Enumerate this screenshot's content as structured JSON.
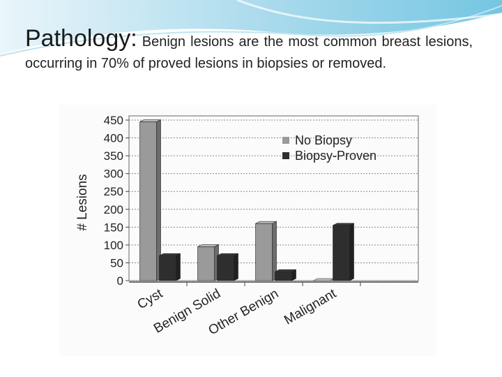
{
  "slide": {
    "title": "Pathology:",
    "body": "Benign lesions are the most common breast lesions, occurring in 70% of proved lesions in biopsies or removed."
  },
  "chart_data": {
    "type": "bar3d",
    "ylabel": "# Lesions",
    "categories": [
      "Cyst",
      "Benign Solid",
      "Other Benign",
      "Malignant"
    ],
    "series": [
      {
        "name": "No Biopsy",
        "color": "#9a9a9a",
        "values": [
          445,
          95,
          160,
          0
        ]
      },
      {
        "name": "Biopsy-Proven",
        "color": "#2e2e2e",
        "values": [
          70,
          70,
          25,
          155
        ]
      }
    ],
    "ylim": [
      0,
      450
    ],
    "yticks": [
      0,
      50,
      100,
      150,
      200,
      250,
      300,
      350,
      400,
      450
    ],
    "grid": true,
    "legend": "top-right"
  }
}
